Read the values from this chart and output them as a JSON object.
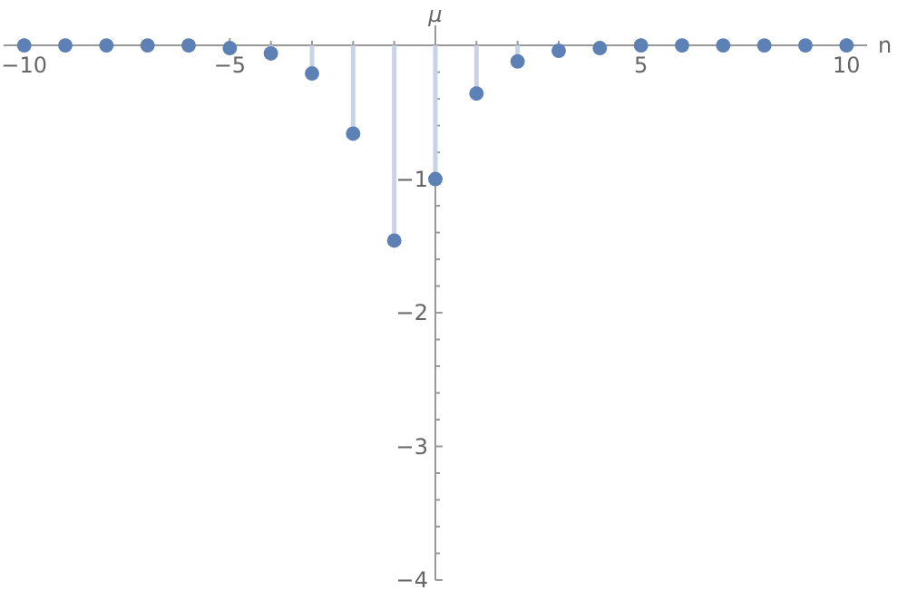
{
  "chart_data": {
    "type": "lollipop",
    "xlabel": "n",
    "ylabel": "μ",
    "x": [
      -10,
      -9,
      -8,
      -7,
      -6,
      -5,
      -4,
      -3,
      -2,
      -1,
      0,
      1,
      2,
      3,
      4,
      5,
      6,
      7,
      8,
      9,
      10
    ],
    "series": [
      {
        "color": "#5e81b5",
        "values": [
          0,
          0,
          0,
          0,
          0,
          -0.02,
          -0.06,
          -0.21,
          -0.66,
          -1.46,
          -1.0,
          -0.36,
          -0.12,
          -0.04,
          -0.02,
          0,
          0,
          0,
          0,
          0,
          0
        ]
      }
    ],
    "xlim": [
      -10.5,
      10.5
    ],
    "ylim": [
      -4,
      0.15
    ],
    "xticks": [
      {
        "value": -10,
        "label": "−10"
      },
      {
        "value": -9,
        "label": null
      },
      {
        "value": -8,
        "label": null
      },
      {
        "value": -7,
        "label": null
      },
      {
        "value": -6,
        "label": null
      },
      {
        "value": -5,
        "label": "−5"
      },
      {
        "value": -4,
        "label": null
      },
      {
        "value": -3,
        "label": null
      },
      {
        "value": -2,
        "label": null
      },
      {
        "value": -1,
        "label": null
      },
      {
        "value": 1,
        "label": null
      },
      {
        "value": 2,
        "label": null
      },
      {
        "value": 3,
        "label": null
      },
      {
        "value": 4,
        "label": null
      },
      5,
      {
        "value": 6,
        "label": null
      },
      {
        "value": 7,
        "label": null
      },
      {
        "value": 8,
        "label": null
      },
      {
        "value": 9,
        "label": null
      },
      10
    ],
    "yticks": [
      {
        "value": -4,
        "label": "−4"
      },
      {
        "value": -3.8,
        "label": null
      },
      {
        "value": -3.6,
        "label": null
      },
      {
        "value": -3.4,
        "label": null
      },
      {
        "value": -3.2,
        "label": null
      },
      {
        "value": -3,
        "label": "−3"
      },
      {
        "value": -2.8,
        "label": null
      },
      {
        "value": -2.6,
        "label": null
      },
      {
        "value": -2.4,
        "label": null
      },
      {
        "value": -2.2,
        "label": null
      },
      {
        "value": -2,
        "label": "−2"
      },
      {
        "value": -1.8,
        "label": null
      },
      {
        "value": -1.6,
        "label": null
      },
      {
        "value": -1.4,
        "label": null
      },
      {
        "value": -1.2,
        "label": null
      },
      {
        "value": -1,
        "label": "−1"
      },
      {
        "value": -0.8,
        "label": null
      },
      {
        "value": -0.6,
        "label": null
      },
      {
        "value": -0.4,
        "label": null
      },
      {
        "value": -0.2,
        "label": null
      }
    ],
    "marker": "circle"
  }
}
